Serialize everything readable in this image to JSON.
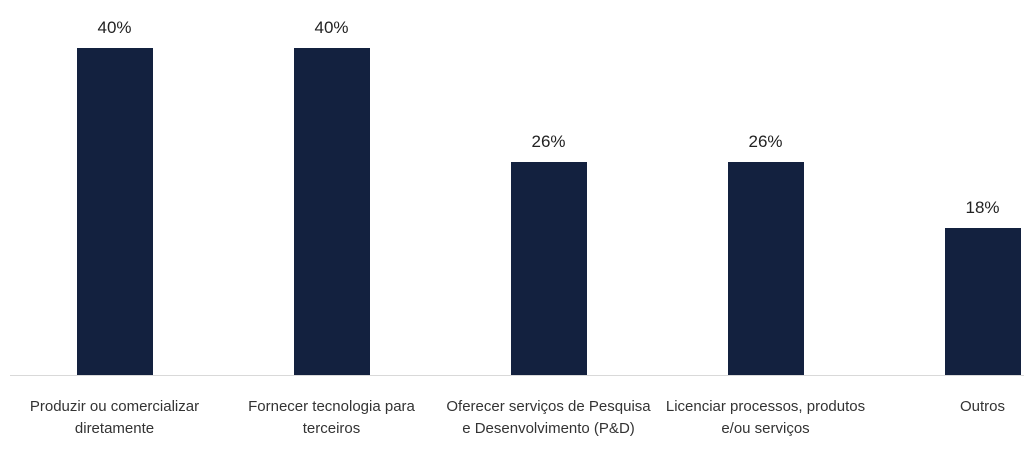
{
  "chart_data": {
    "type": "bar",
    "categories": [
      "Produzir ou comercializar diretamente",
      "Fornecer tecnologia para terceiros",
      "Oferecer serviços de Pesquisa e Desenvolvimento (P&D)",
      "Licenciar processos, produtos e/ou serviços",
      "Outros"
    ],
    "values": [
      40,
      40,
      26,
      26,
      18
    ],
    "value_labels": [
      "40%",
      "40%",
      "26%",
      "26%",
      "18%"
    ],
    "color": "#13213f",
    "ylim": [
      0,
      40
    ]
  }
}
